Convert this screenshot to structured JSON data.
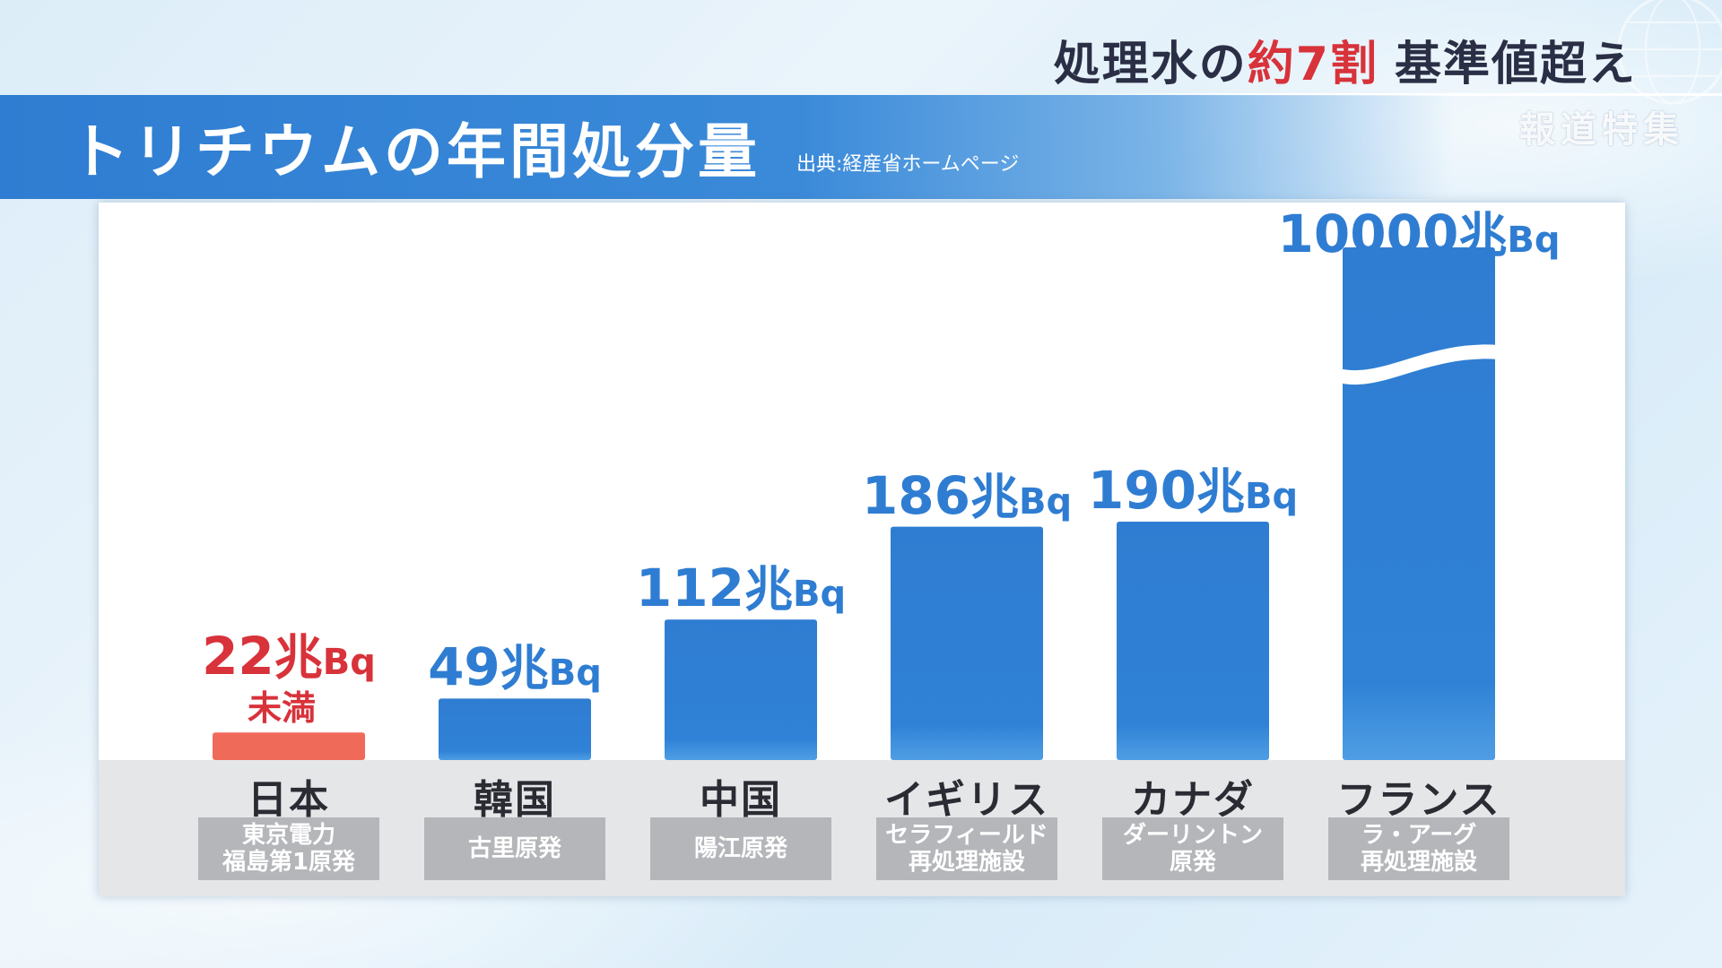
{
  "headline": {
    "part1": "処理水の",
    "accent": "約7割",
    "part2": "基準値超え",
    "accent_color": "#d8323a"
  },
  "program_logo": "報道特集",
  "title_bar": {
    "title": "トリチウムの年間処分量",
    "source": "出典:経産省ホームページ"
  },
  "chart_data": {
    "type": "bar",
    "title": "トリチウムの年間処分量",
    "unit": "兆Bq",
    "categories": [
      "日本",
      "韓国",
      "中国",
      "イギリス",
      "カナダ",
      "フランス"
    ],
    "facilities": [
      "東京電力\n福島第1原発",
      "古里原発",
      "陽江原発",
      "セラフィールド\n再処理施設",
      "ダーリントン\n原発",
      "ラ・アーグ\n再処理施設"
    ],
    "values": [
      22,
      49,
      112,
      186,
      190,
      10000
    ],
    "value_labels": [
      {
        "num": "22",
        "unit1": "兆",
        "unit2": "Bq",
        "qualifier": "未満"
      },
      {
        "num": "49",
        "unit1": "兆",
        "unit2": "Bq"
      },
      {
        "num": "112",
        "unit1": "兆",
        "unit2": "Bq"
      },
      {
        "num": "186",
        "unit1": "兆",
        "unit2": "Bq"
      },
      {
        "num": "190",
        "unit1": "兆",
        "unit2": "Bq"
      },
      {
        "num": "10000",
        "unit1": "兆",
        "unit2": "Bq"
      }
    ],
    "highlight_index": 0,
    "highlight_color": "#f06a5a",
    "bar_color": "#2f7dd2",
    "broken_axis_index": 5,
    "legend": "none",
    "grid": false
  }
}
